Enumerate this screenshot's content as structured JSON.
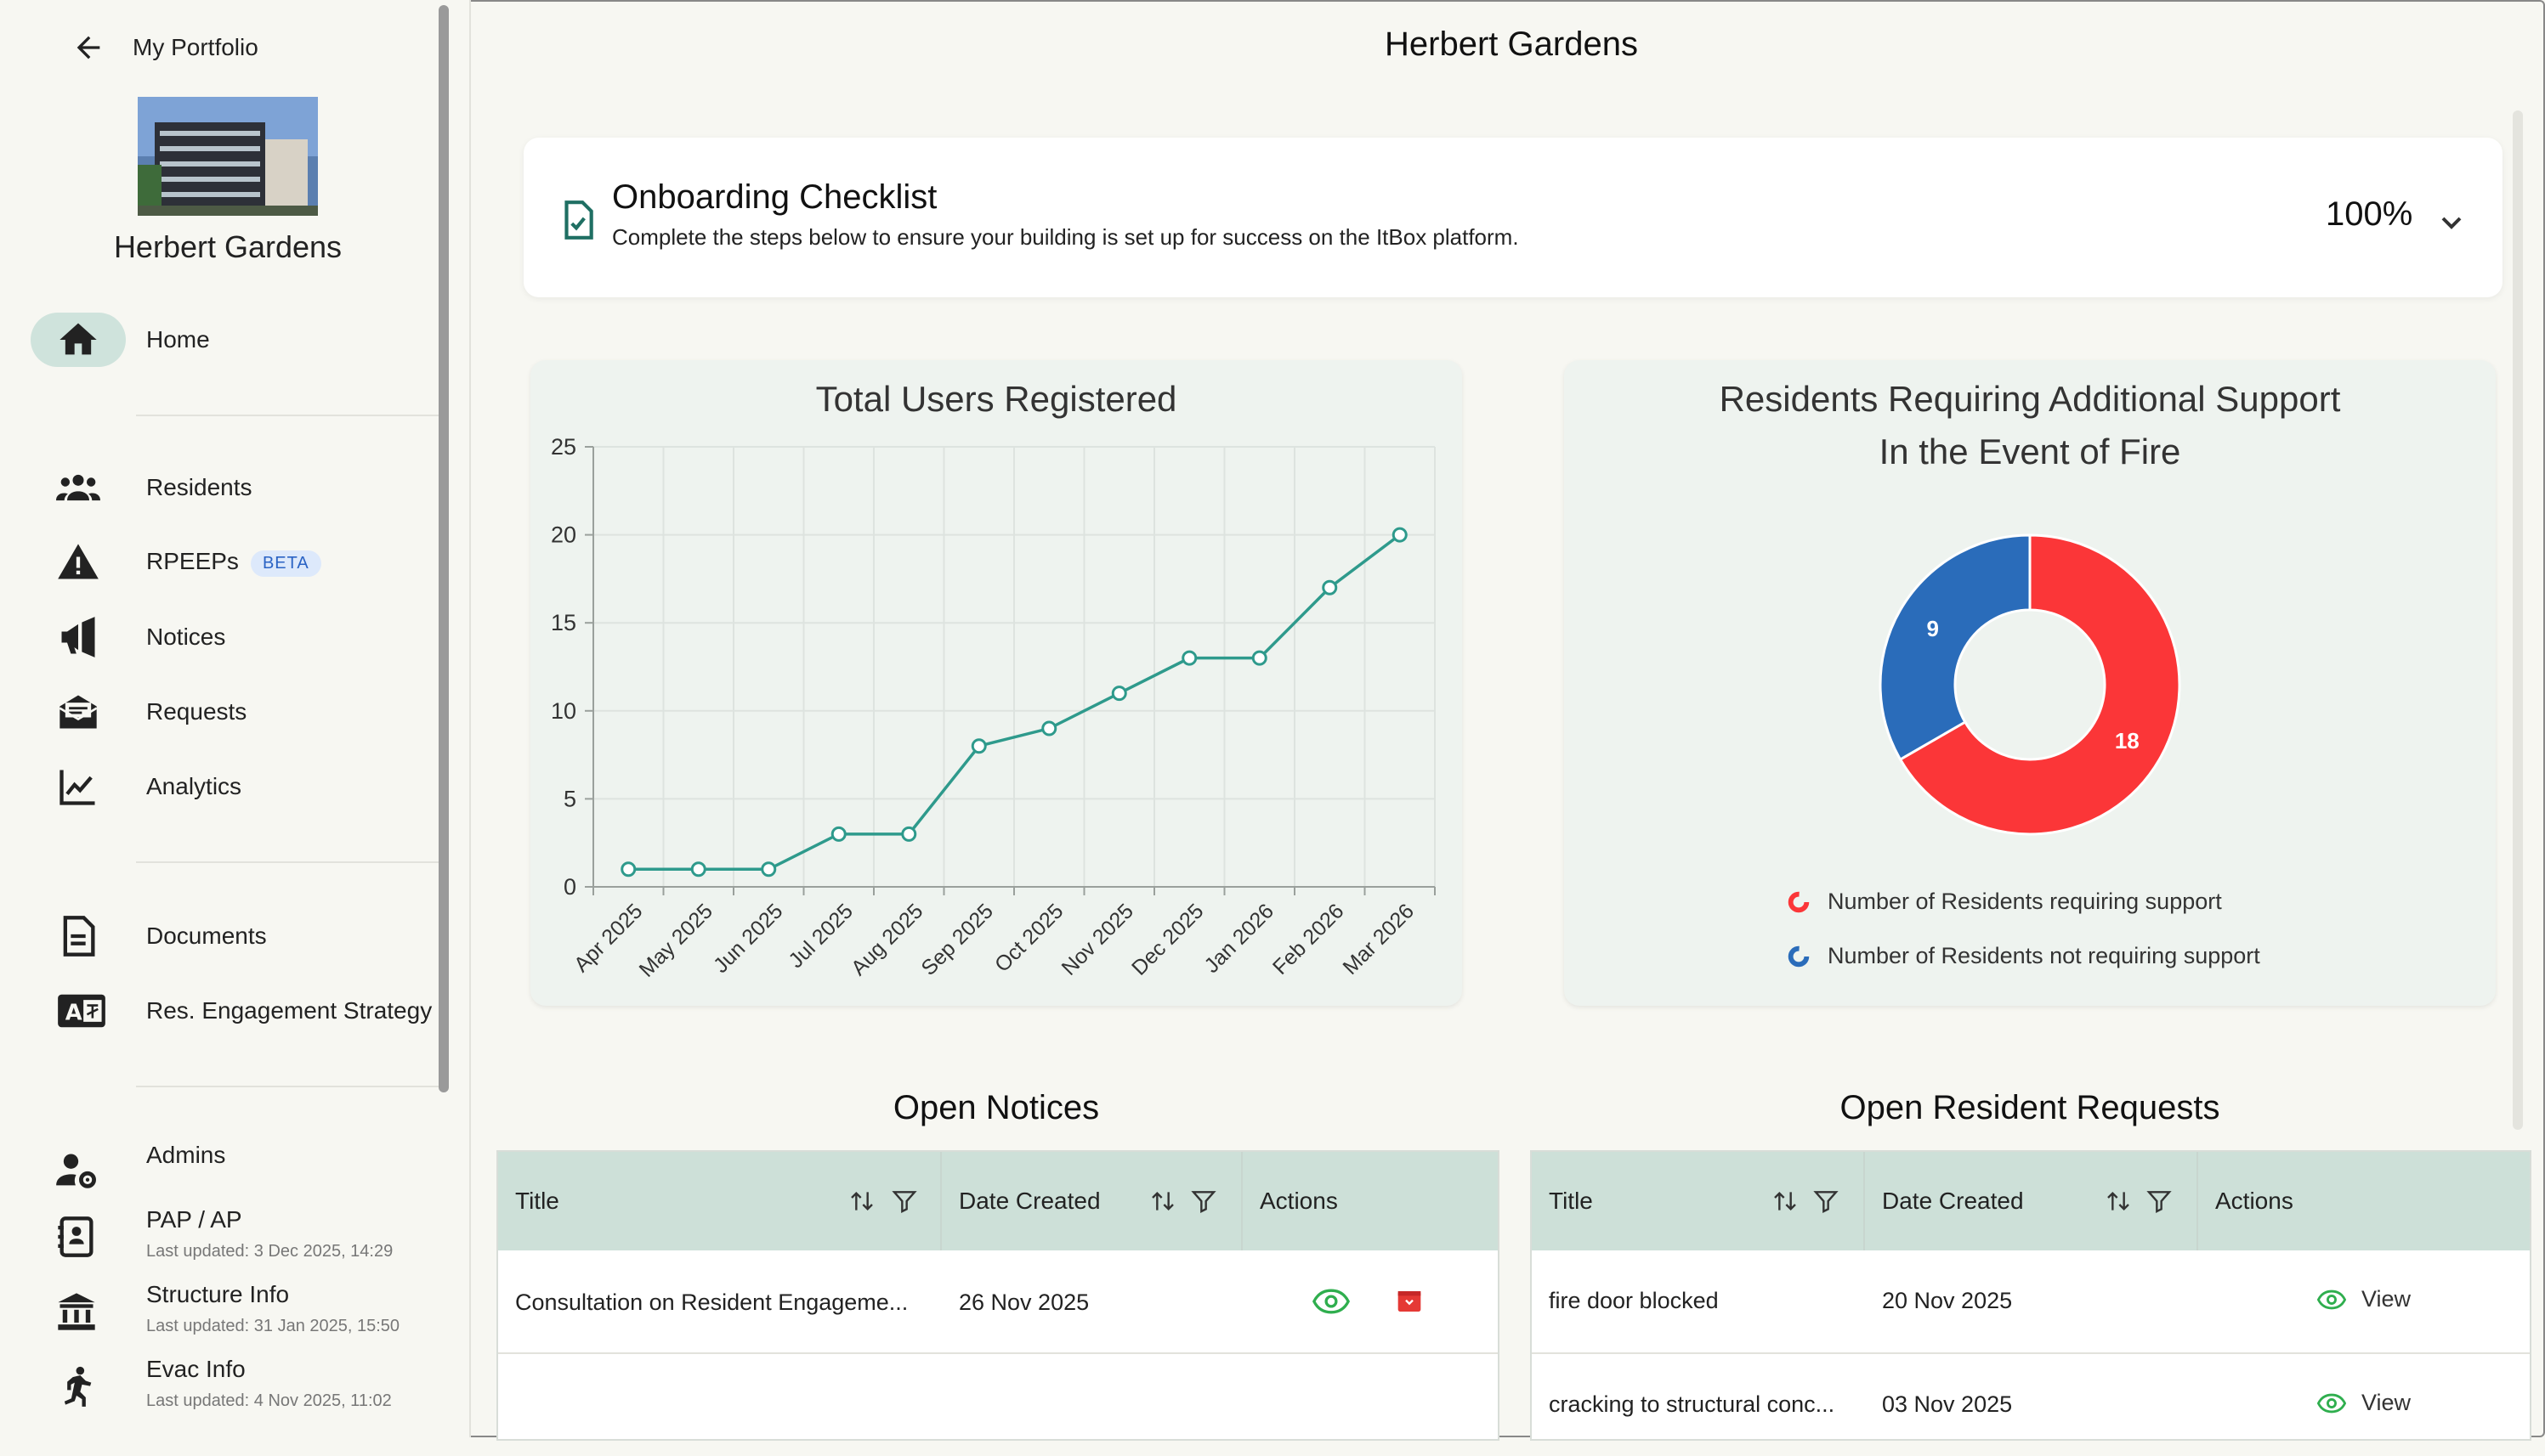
{
  "sidebar": {
    "back_label": "My Portfolio",
    "building_name": "Herbert Gardens",
    "nav": [
      {
        "label": "Home",
        "icon": "home-icon"
      },
      {
        "label": "Residents",
        "icon": "users-icon"
      },
      {
        "label": "RPEEPs",
        "icon": "warning-icon",
        "badge": "BETA"
      },
      {
        "label": "Notices",
        "icon": "megaphone-icon"
      },
      {
        "label": "Requests",
        "icon": "mail-open-icon"
      },
      {
        "label": "Analytics",
        "icon": "chart-line-icon"
      },
      {
        "label": "Documents",
        "icon": "document-icon"
      },
      {
        "label": "Res. Engagement Strategy",
        "icon": "translate-icon"
      }
    ],
    "info_items": [
      {
        "label": "Admins",
        "icon": "admin-settings-icon",
        "sub": ""
      },
      {
        "label": "PAP / AP",
        "icon": "contact-card-icon",
        "sub": "Last updated: 3 Dec 2025, 14:29"
      },
      {
        "label": "Structure Info",
        "icon": "building-columns-icon",
        "sub": "Last updated: 31 Jan 2025, 15:50"
      },
      {
        "label": "Evac Info",
        "icon": "running-person-icon",
        "sub": "Last updated: 4 Nov 2025, 11:02"
      }
    ]
  },
  "page": {
    "title": "Herbert Gardens"
  },
  "onboarding": {
    "title": "Onboarding Checklist",
    "description": "Complete the steps below to ensure your building is set up for success on the ItBox platform.",
    "progress": "100%"
  },
  "chart_data": [
    {
      "type": "line",
      "title": "Total Users Registered",
      "x": [
        "Apr 2025",
        "May 2025",
        "Jun 2025",
        "Jul 2025",
        "Aug 2025",
        "Sep 2025",
        "Oct 2025",
        "Nov 2025",
        "Dec 2025",
        "Jan 2026",
        "Feb 2026",
        "Mar 2026"
      ],
      "series": [
        {
          "values": [
            1,
            1,
            1,
            3,
            3,
            8,
            9,
            11,
            13,
            13,
            17,
            20
          ]
        }
      ],
      "ylim": [
        0,
        25
      ],
      "yticks": [
        0,
        5,
        10,
        15,
        20,
        25
      ],
      "grid": true,
      "color": "#2e9a8c"
    },
    {
      "type": "pie",
      "title_lines": [
        "Residents Requiring Additional Support",
        "In the Event of Fire"
      ],
      "slices": [
        {
          "label": "Number of Residents requiring support",
          "value": 18,
          "color": "#fb3638"
        },
        {
          "label": "Number of Residents not requiring support",
          "value": 9,
          "color": "#2a6cba"
        }
      ],
      "legend_position": "bottom"
    }
  ],
  "notices": {
    "title": "Open Notices",
    "columns": [
      "Title",
      "Date Created",
      "Actions"
    ],
    "rows": [
      {
        "title": "Consultation on Resident Engageme...",
        "date": "26 Nov 2025"
      },
      {
        "title": "",
        "date": ""
      }
    ]
  },
  "requests": {
    "title": "Open Resident Requests",
    "columns": [
      "Title",
      "Date Created",
      "Actions"
    ],
    "view_label": "View",
    "rows": [
      {
        "title": "fire door blocked",
        "date": "20 Nov 2025"
      },
      {
        "title": "cracking to structural conc...",
        "date": "03 Nov 2025"
      }
    ]
  }
}
